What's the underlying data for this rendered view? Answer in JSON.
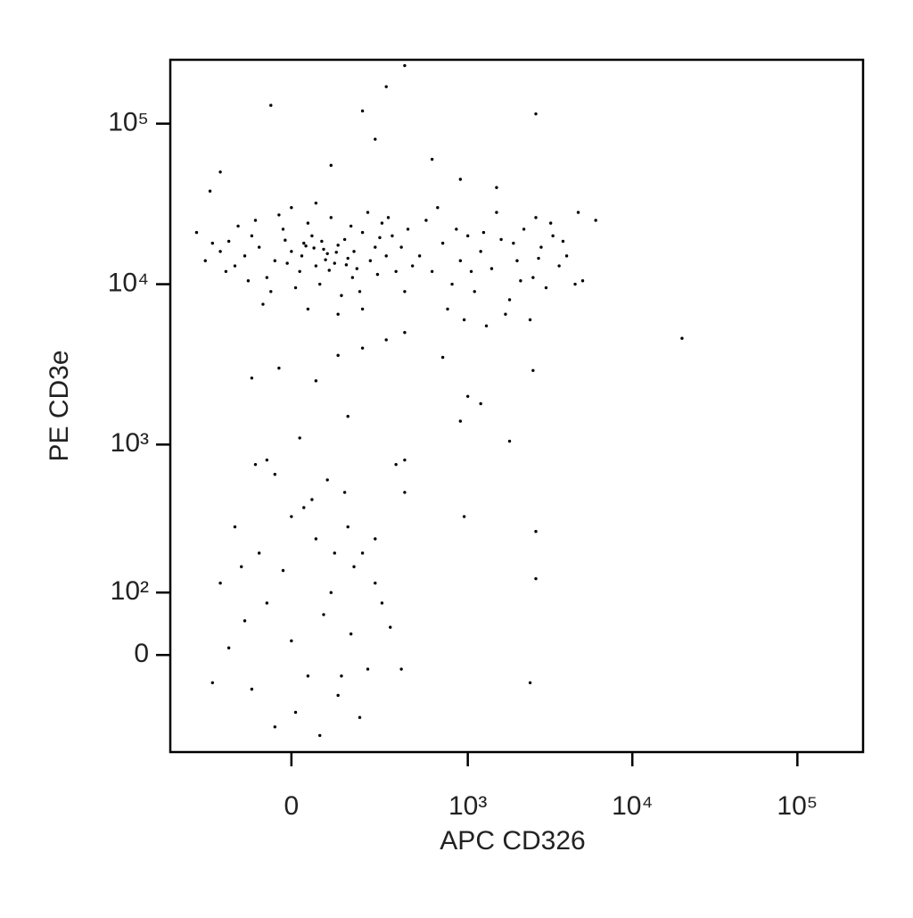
{
  "chart_data": {
    "type": "scatter",
    "x_label": "APC CD326",
    "y_label": "PE CD3e",
    "xscale": "biexponential",
    "yscale": "biexponential",
    "xlim": [
      -450,
      250000
    ],
    "ylim": [
      -185,
      250000
    ],
    "xticks": [
      0,
      {
        "value": 1000,
        "label": "10³"
      },
      {
        "value": 10000,
        "label": "10⁴"
      },
      {
        "value": 100000,
        "label": "10⁵"
      }
    ],
    "yticks": [
      0,
      {
        "value": 100,
        "label": "10²"
      },
      {
        "value": 1000,
        "label": "10³"
      },
      {
        "value": 10000,
        "label": "10⁴"
      },
      {
        "value": 100000,
        "label": "10⁵"
      }
    ],
    "color": "#000000",
    "x": [
      -120,
      -80,
      -40,
      0,
      30,
      60,
      90,
      120,
      150,
      180,
      -150,
      -100,
      -60,
      -20,
      20,
      50,
      80,
      110,
      140,
      170,
      200,
      230,
      260,
      -200,
      -180,
      -230,
      -50,
      10,
      70,
      130,
      190,
      250,
      300,
      330,
      -90,
      -30,
      40,
      100,
      160,
      220,
      280,
      -140,
      0,
      60,
      -70,
      40,
      120,
      200,
      -260,
      -300,
      350,
      380,
      420,
      450,
      400,
      -10,
      25,
      55,
      85,
      115,
      145,
      75,
      35,
      -15,
      95,
      165,
      -110,
      -170,
      270,
      310,
      500,
      600,
      700,
      800,
      900,
      1000,
      1100,
      1200,
      1400,
      1600,
      1800,
      2000,
      2200,
      2500,
      2800,
      3000,
      3300,
      3600,
      4000,
      4500,
      5000,
      6000,
      550,
      750,
      950,
      1300,
      1700,
      2400,
      650,
      1500,
      2600,
      3200,
      850,
      1250,
      1900,
      2700,
      3800,
      4700,
      1050,
      2100,
      -30,
      60,
      200,
      400,
      700,
      1000,
      900,
      1200,
      -100,
      20,
      150,
      400,
      2500,
      1800,
      20000,
      300,
      120,
      -60,
      100,
      250,
      300,
      200,
      -50,
      400,
      2600,
      1500,
      900,
      -200,
      600,
      -240,
      -150,
      -80,
      -20,
      30,
      60,
      100,
      150,
      200,
      -200,
      -120,
      -60,
      0,
      40,
      80,
      120,
      160,
      220,
      280,
      -230,
      -170,
      -100,
      -40,
      10,
      70,
      130,
      190,
      250,
      320,
      380,
      90,
      140,
      -40,
      50,
      250,
      170,
      -130,
      0,
      110,
      950,
      2600,
      2600,
      2400,
      400,
      350,
      -90
    ],
    "values": [
      15000,
      17000,
      14000,
      16000,
      18000,
      13000,
      15500,
      17500,
      14500,
      12500,
      13000,
      20000,
      11000,
      22000,
      12000,
      20000,
      16500,
      13500,
      19000,
      16000,
      21000,
      14000,
      11500,
      16000,
      12000,
      18000,
      9000,
      9500,
      10000,
      8500,
      9000,
      17000,
      15000,
      20000,
      25000,
      27000,
      24000,
      26000,
      23000,
      28000,
      24000,
      23000,
      30000,
      32000,
      7500,
      7000,
      6500,
      7000,
      14000,
      21000,
      12000,
      17000,
      22000,
      13000,
      9000,
      13500,
      15000,
      16800,
      14200,
      15800,
      13200,
      18500,
      17300,
      18800,
      12200,
      11000,
      10500,
      18500,
      19500,
      26000,
      15000,
      12000,
      18000,
      10000,
      14000,
      20000,
      9000,
      16000,
      12500,
      19000,
      8000,
      14000,
      22000,
      11000,
      17000,
      9500,
      20000,
      13000,
      15000,
      10000,
      10500,
      25000,
      25000,
      7000,
      6000,
      5500,
      6500,
      6000,
      30000,
      28000,
      26000,
      24000,
      22000,
      21000,
      18000,
      14500,
      18500,
      28000,
      12000,
      10500,
      3000,
      2500,
      4000,
      5000,
      3500,
      2000,
      1400,
      1800,
      2600,
      1100,
      1500,
      800,
      2900,
      1050,
      4600,
      4500,
      3600,
      800,
      55000,
      80000,
      170000,
      120000,
      130000,
      230000,
      115000,
      40000,
      45000,
      50000,
      60000,
      38000,
      300,
      200,
      150,
      400,
      250,
      100,
      300,
      200,
      120,
      50,
      80,
      20,
      -30,
      60,
      -60,
      30,
      -20,
      80,
      -40,
      10,
      -50,
      -120,
      -90,
      -140,
      -30,
      -100,
      120,
      40,
      -20,
      600,
      500,
      650,
      450,
      250,
      160,
      160,
      350,
      200,
      350,
      280,
      130,
      -40,
      500,
      750,
      750
    ]
  }
}
